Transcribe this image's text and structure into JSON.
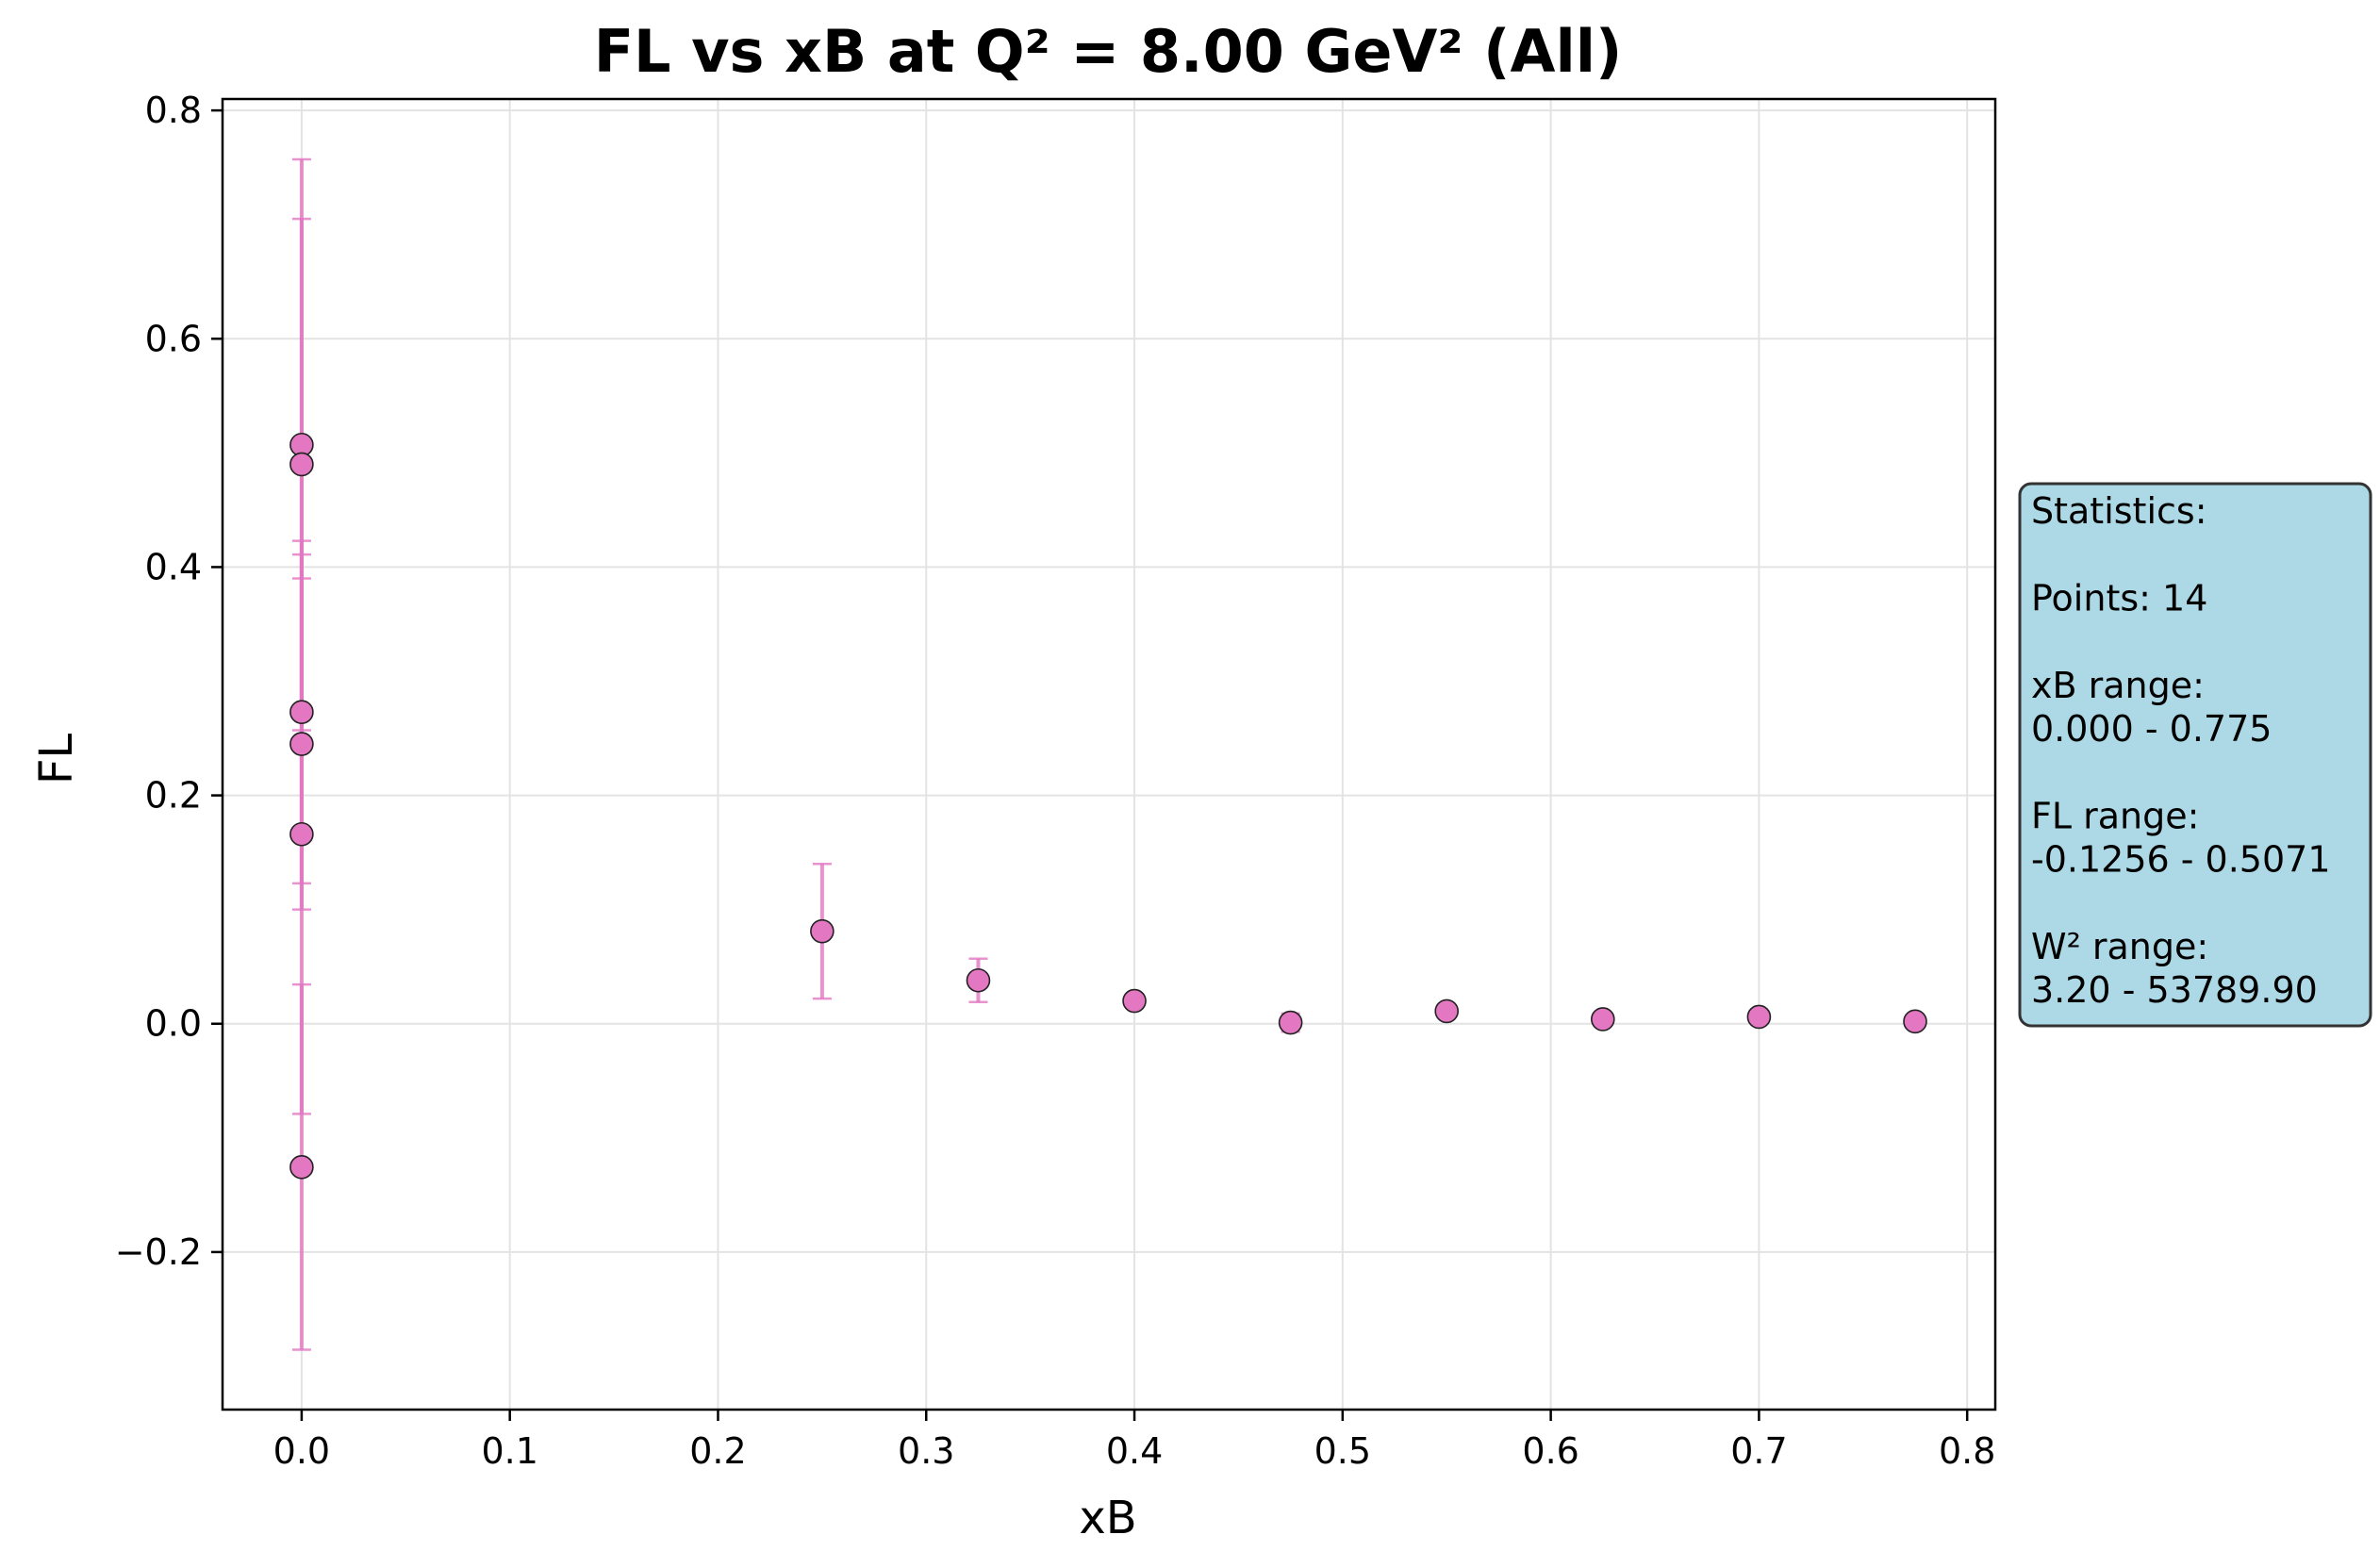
{
  "chart_data": {
    "type": "scatter",
    "title": "FL vs xB at Q² = 8.00 GeV² (All)",
    "xlabel": "xB",
    "ylabel": "FL",
    "xlim": [
      -0.038,
      0.8135
    ],
    "ylim": [
      -0.338,
      0.81
    ],
    "xticks": [
      0.0,
      0.1,
      0.2,
      0.3,
      0.4,
      0.5,
      0.6,
      0.7,
      0.8
    ],
    "xtick_labels": [
      "0.0",
      "0.1",
      "0.2",
      "0.3",
      "0.4",
      "0.5",
      "0.6",
      "0.7",
      "0.8"
    ],
    "yticks": [
      -0.2,
      0.0,
      0.2,
      0.4,
      0.6,
      0.8
    ],
    "ytick_labels": [
      "−0.2",
      "0.0",
      "0.2",
      "0.4",
      "0.6",
      "0.8"
    ],
    "grid": true,
    "series": [
      {
        "color": "#e377c2",
        "points": [
          {
            "x": 0.0,
            "y": 0.5071,
            "yerr": 0.25
          },
          {
            "x": 0.0,
            "y": 0.49,
            "yerr": 0.215
          },
          {
            "x": 0.0,
            "y": 0.273,
            "yerr": 0.15
          },
          {
            "x": 0.0,
            "y": 0.245,
            "yerr": 0.145
          },
          {
            "x": 0.0,
            "y": 0.166,
            "yerr": 0.245
          },
          {
            "x": 0.0,
            "y": -0.1256,
            "yerr": 0.16
          },
          {
            "x": 0.25,
            "y": 0.081,
            "yerr": 0.059
          },
          {
            "x": 0.325,
            "y": 0.038,
            "yerr": 0.019
          },
          {
            "x": 0.4,
            "y": 0.02,
            "yerr": 0.006
          },
          {
            "x": 0.475,
            "y": 0.001,
            "yerr": 0.008
          },
          {
            "x": 0.55,
            "y": 0.011,
            "yerr": 0.003
          },
          {
            "x": 0.625,
            "y": 0.004,
            "yerr": 0.003
          },
          {
            "x": 0.7,
            "y": 0.006,
            "yerr": 0.003
          },
          {
            "x": 0.775,
            "y": 0.002,
            "yerr": 0.003
          }
        ]
      }
    ]
  },
  "stats_box": {
    "bg_color": "#add8e6",
    "lines": [
      "Statistics:",
      "",
      "Points: 14",
      "",
      "xB range:",
      "0.000 - 0.775",
      "",
      "FL range:",
      "-0.1256 - 0.5071",
      "",
      "W² range:",
      "3.20 - 53789.90"
    ]
  }
}
